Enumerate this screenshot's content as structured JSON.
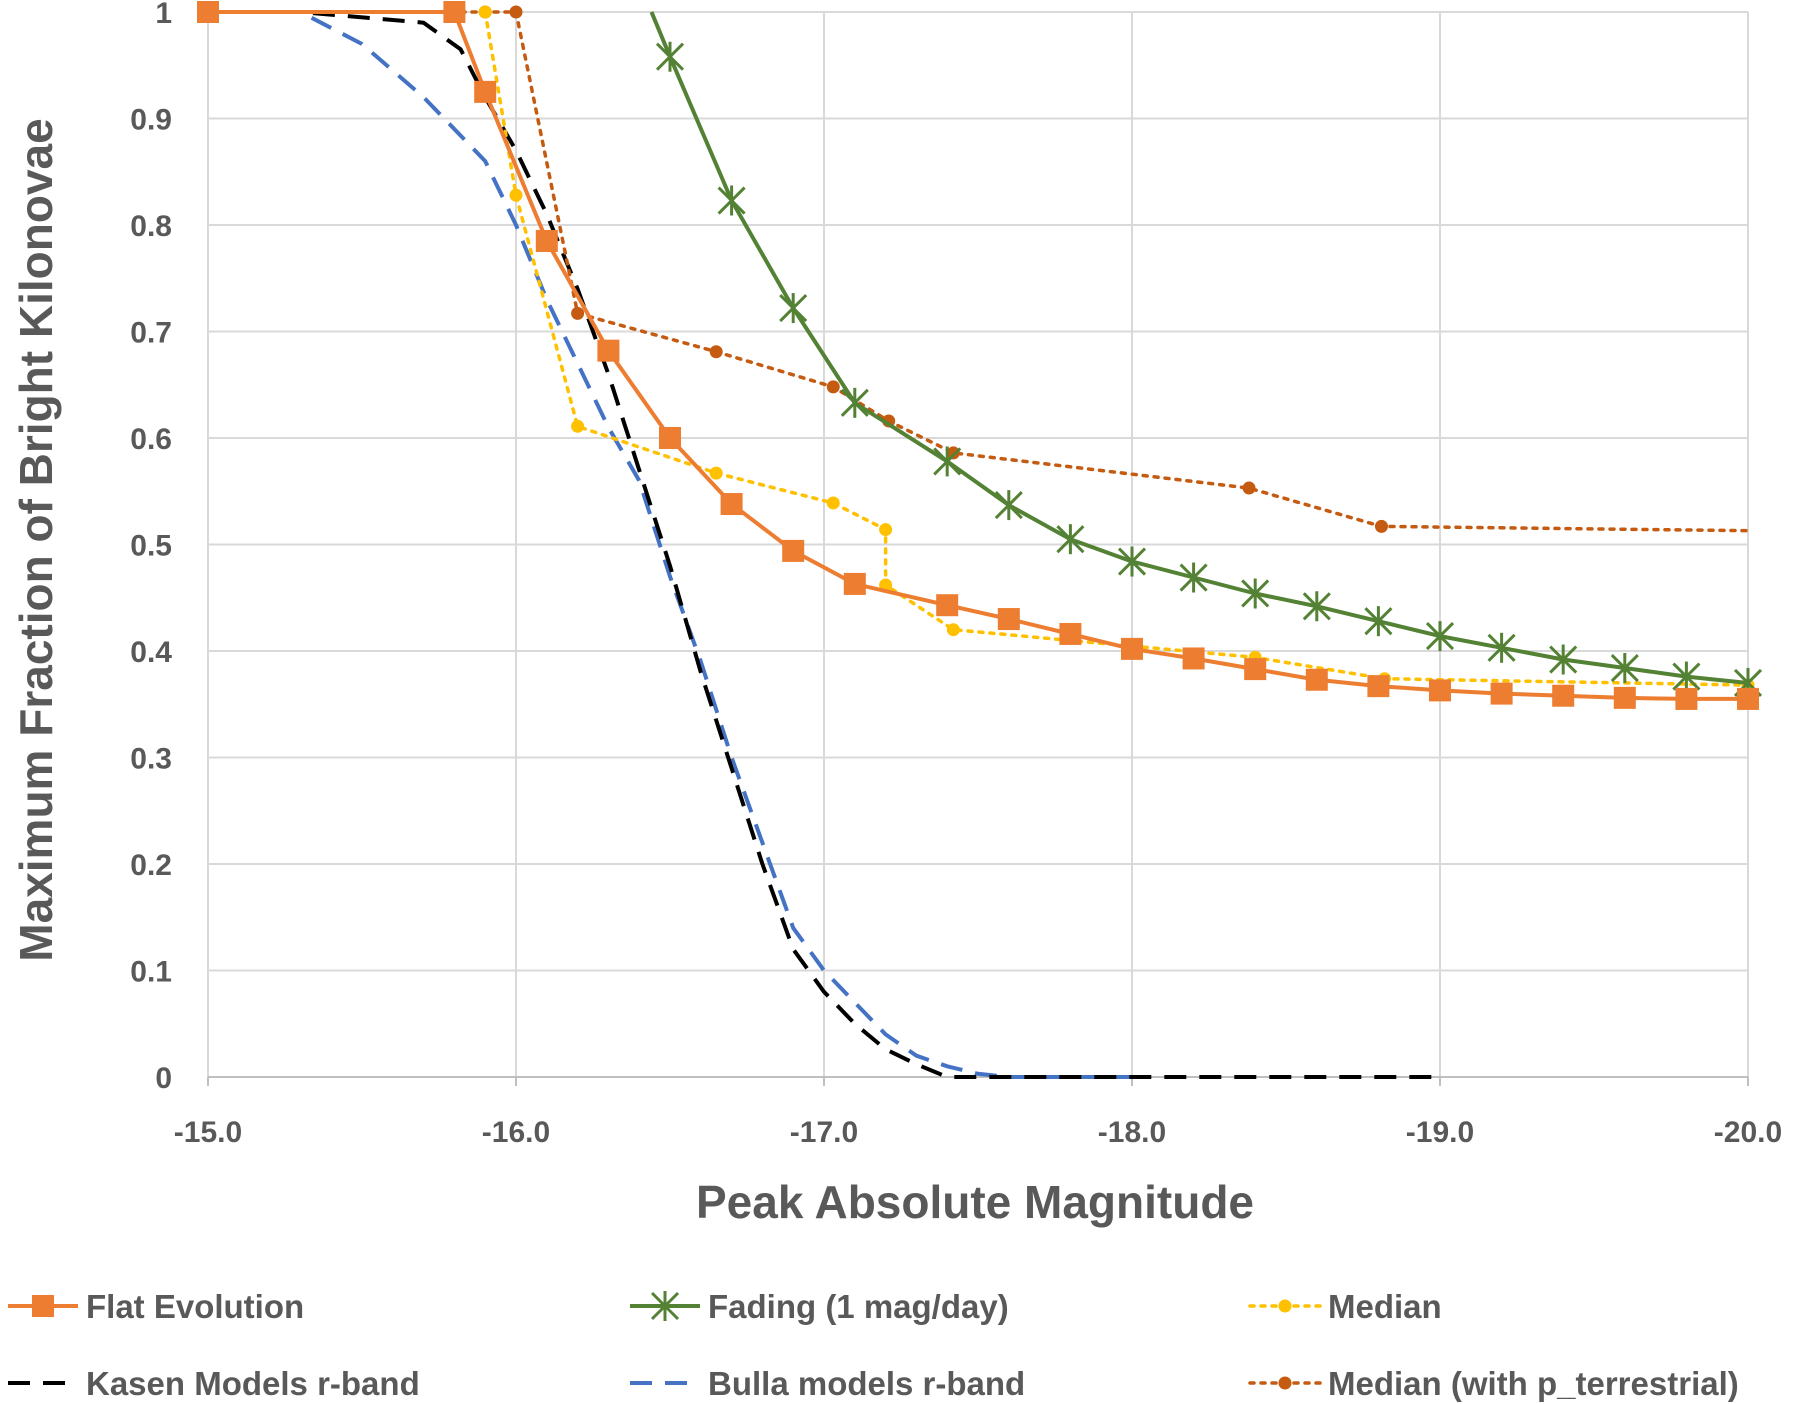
{
  "chart_data": {
    "type": "line",
    "title": "",
    "xlabel": "Peak Absolute Magnitude",
    "ylabel": "Maximum Fraction of Bright Kilonovae",
    "xlim": [
      -15.0,
      -20.0
    ],
    "ylim": [
      0,
      1
    ],
    "x_reversed": true,
    "grid": true,
    "legend_position": "bottom",
    "x_ticks": [
      -15.0,
      -16.0,
      -17.0,
      -18.0,
      -19.0,
      -20.0
    ],
    "x_tick_labels": [
      "-15.0",
      "-16.0",
      "-17.0",
      "-18.0",
      "-19.0",
      "-20.0"
    ],
    "y_ticks": [
      0,
      0.1,
      0.2,
      0.3,
      0.4,
      0.5,
      0.6,
      0.7,
      0.8,
      0.9,
      1
    ],
    "y_tick_labels": [
      "0",
      "0.1",
      "0.2",
      "0.3",
      "0.4",
      "0.5",
      "0.6",
      "0.7",
      "0.8",
      "0.9",
      "1"
    ],
    "series": [
      {
        "name": "Flat Evolution",
        "color": "#ED7D31",
        "style": "solid",
        "marker": "square",
        "x": [
          -15.0,
          -15.8,
          -15.9,
          -16.1,
          -16.3,
          -16.5,
          -16.7,
          -16.9,
          -17.1,
          -17.4,
          -17.6,
          -17.8,
          -18.0,
          -18.2,
          -18.4,
          -18.6,
          -18.8,
          -19.0,
          -19.2,
          -19.4,
          -19.6,
          -19.8,
          -20.0
        ],
        "y": [
          1.0,
          1.0,
          0.925,
          0.785,
          0.682,
          0.6,
          0.538,
          0.494,
          0.463,
          0.443,
          0.43,
          0.416,
          0.402,
          0.393,
          0.383,
          0.373,
          0.367,
          0.363,
          0.36,
          0.358,
          0.356,
          0.355,
          0.355
        ]
      },
      {
        "name": "Fading (1 mag/day)",
        "color": "#548235",
        "style": "solid",
        "marker": "asterisk",
        "x": [
          -16.44,
          -16.5,
          -16.7,
          -16.9,
          -17.1,
          -17.4,
          -17.6,
          -17.8,
          -18.0,
          -18.2,
          -18.4,
          -18.6,
          -18.8,
          -19.0,
          -19.2,
          -19.4,
          -19.6,
          -19.8,
          -20.0
        ],
        "y": [
          1.0,
          0.958,
          0.823,
          0.722,
          0.633,
          0.578,
          0.537,
          0.505,
          0.484,
          0.469,
          0.454,
          0.442,
          0.428,
          0.414,
          0.403,
          0.392,
          0.384,
          0.376,
          0.37
        ],
        "marker_from": 1
      },
      {
        "name": "Median",
        "color": "#FFC000",
        "style": "dotted",
        "marker": "circle",
        "x": [
          -15.9,
          -16.0,
          -16.2,
          -16.65,
          -17.03,
          -17.2,
          -17.2,
          -17.42,
          -18.4,
          -18.82,
          -20.0
        ],
        "y": [
          1.0,
          0.828,
          0.611,
          0.567,
          0.539,
          0.514,
          0.462,
          0.42,
          0.394,
          0.374,
          0.368
        ]
      },
      {
        "name": "Kasen Models r-band",
        "color": "#000000",
        "style": "dashed",
        "marker": "none",
        "x": [
          -15.0,
          -15.3,
          -15.7,
          -15.82,
          -15.9,
          -16.0,
          -16.1,
          -16.2,
          -16.3,
          -16.4,
          -16.5,
          -16.6,
          -16.7,
          -16.8,
          -16.9,
          -17.0,
          -17.1,
          -17.2,
          -17.3,
          -17.4,
          -17.6,
          -18.0,
          -18.5,
          -19.0
        ],
        "y": [
          1.0,
          1.0,
          0.99,
          0.965,
          0.92,
          0.87,
          0.81,
          0.74,
          0.66,
          0.57,
          0.48,
          0.38,
          0.29,
          0.2,
          0.12,
          0.08,
          0.05,
          0.026,
          0.012,
          0.0,
          0.0,
          0.0,
          0.0,
          0.0
        ]
      },
      {
        "name": "Bulla models r-band",
        "color": "#4472C4",
        "style": "dashed",
        "marker": "none",
        "x": [
          -15.0,
          -15.3,
          -15.5,
          -15.7,
          -15.9,
          -16.0,
          -16.1,
          -16.2,
          -16.3,
          -16.4,
          -16.5,
          -16.6,
          -16.7,
          -16.8,
          -16.9,
          -17.0,
          -17.1,
          -17.2,
          -17.3,
          -17.4,
          -17.5,
          -17.6,
          -18.0
        ],
        "y": [
          1.0,
          1.0,
          0.97,
          0.92,
          0.86,
          0.8,
          0.73,
          0.67,
          0.61,
          0.56,
          0.47,
          0.39,
          0.3,
          0.22,
          0.14,
          0.1,
          0.07,
          0.04,
          0.02,
          0.01,
          0.003,
          0.0,
          0.0
        ]
      },
      {
        "name": "Median (with p_terrestrial)",
        "color": "#C55A11",
        "style": "dotted",
        "marker": "circle",
        "x": [
          -15.0,
          -15.9,
          -16.0,
          -16.2,
          -16.65,
          -17.03,
          -17.21,
          -17.42,
          -18.38,
          -18.81,
          -20.0
        ],
        "y": [
          1.0,
          1.0,
          1.0,
          0.717,
          0.681,
          0.648,
          0.616,
          0.586,
          0.553,
          0.517,
          0.513
        ],
        "marker_indices": [
          1,
          2,
          3,
          4,
          5,
          6,
          7,
          8,
          9
        ]
      }
    ]
  }
}
